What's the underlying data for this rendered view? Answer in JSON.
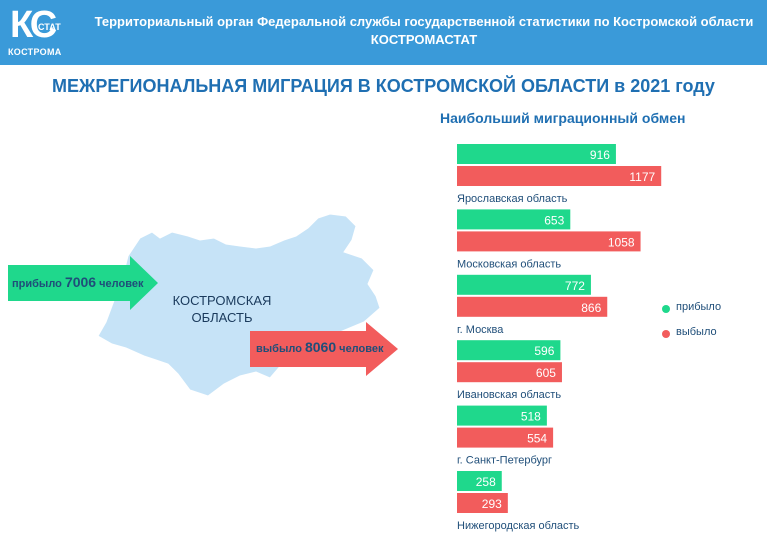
{
  "header": {
    "logo_text": "КС",
    "logo_stat": "СТАТ",
    "logo_city": "КОСТРОМА",
    "org_name": "Территориальный орган Федеральной службы государственной статистики по Костромской области",
    "org_short": "КОСТРОМАСТАТ"
  },
  "title": "МЕЖРЕГИОНАЛЬНАЯ МИГРАЦИЯ В КОСТРОМСКОЙ ОБЛАСТИ в 2021 году",
  "map": {
    "region_line1": "КОСТРОМСКАЯ",
    "region_line2": "ОБЛАСТЬ",
    "arrival_prefix": "прибыло ",
    "arrival_value": "7006",
    "arrival_suffix": " человек",
    "departure_prefix": "выбыло ",
    "departure_value": "8060",
    "departure_suffix": " человек"
  },
  "legend": {
    "arrived": "прибыло",
    "departed": "выбыло"
  },
  "colors": {
    "header": "#3a9ad9",
    "arrived": "#1fd88c",
    "departed": "#f25c5c",
    "title": "#1f6fb2",
    "map": "#c6e3f7"
  },
  "chart_data": {
    "type": "bar",
    "title": "Наибольший миграционный обмен",
    "categories": [
      "Ярославская область",
      "Московская область",
      "г. Москва",
      "Ивановская область",
      "г. Санкт-Петербург",
      "Нижегородская область"
    ],
    "series": [
      {
        "name": "прибыло",
        "values": [
          916,
          653,
          772,
          596,
          518,
          258
        ]
      },
      {
        "name": "выбыло",
        "values": [
          1177,
          1058,
          866,
          605,
          554,
          293
        ]
      }
    ]
  }
}
